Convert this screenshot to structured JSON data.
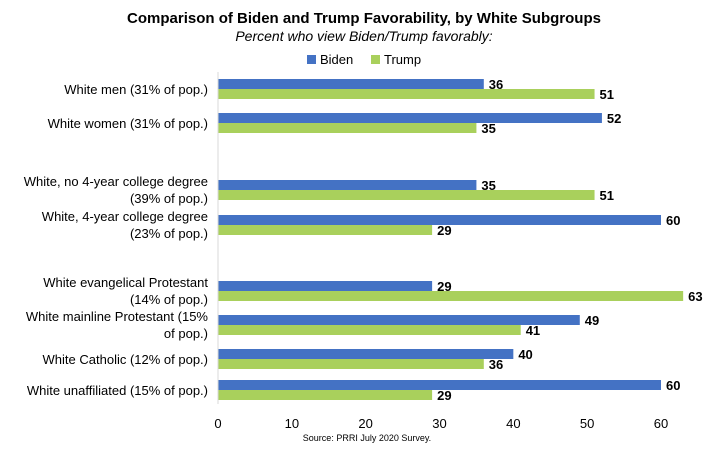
{
  "chart_data": {
    "type": "bar",
    "orientation": "horizontal",
    "title": "Comparison of Biden and Trump Favorability, by White Subgroups",
    "subtitle": "Percent who view Biden/Trump favorably:",
    "source": "Source: PRRI July 2020 Survey.",
    "categories": [
      [
        "White men (31% of pop.)"
      ],
      [
        "White women (31% of pop.)"
      ],
      [
        "White, no 4-year college degree",
        "(39% of pop.)"
      ],
      [
        "White, 4-year college degree",
        "(23% of pop.)"
      ],
      [
        "White evangelical Protestant",
        "(14% of pop.)"
      ],
      [
        "White mainline Protestant (15%",
        "of pop.)"
      ],
      [
        "White Catholic (12% of pop.)"
      ],
      [
        "White unaffiliated (15% of pop.)"
      ]
    ],
    "series": [
      {
        "name": "Biden",
        "color": "#4472C4",
        "values": [
          36,
          52,
          35,
          60,
          29,
          49,
          40,
          60
        ]
      },
      {
        "name": "Trump",
        "color": "#A9D05C",
        "values": [
          51,
          35,
          51,
          29,
          63,
          41,
          36,
          29
        ]
      }
    ],
    "xlim": [
      0,
      65
    ],
    "xticks": [
      0,
      10,
      20,
      30,
      40,
      50,
      60
    ],
    "legend_position": "top",
    "grid": false
  }
}
